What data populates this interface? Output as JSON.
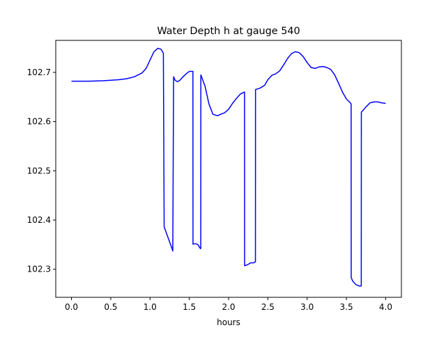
{
  "chart_data": {
    "type": "line",
    "title": "Water Depth h at gauge 540",
    "xlabel": "hours",
    "ylabel": "",
    "xlim": [
      -0.2,
      4.2
    ],
    "ylim": [
      102.243,
      102.765
    ],
    "x_ticks": [
      0.0,
      0.5,
      1.0,
      1.5,
      2.0,
      2.5,
      3.0,
      3.5,
      4.0
    ],
    "x_tick_labels": [
      "0.0",
      "0.5",
      "1.0",
      "1.5",
      "2.0",
      "2.5",
      "3.0",
      "3.5",
      "4.0"
    ],
    "y_ticks": [
      102.3,
      102.4,
      102.5,
      102.6,
      102.7
    ],
    "y_tick_labels": [
      "102.3",
      "102.4",
      "102.5",
      "102.6",
      "102.7"
    ],
    "grid": false,
    "legend": "none",
    "series": [
      {
        "color": "#0000ff",
        "x": [
          0.0,
          0.2,
          0.4,
          0.6,
          0.7,
          0.8,
          0.9,
          0.95,
          1.0,
          1.05,
          1.1,
          1.14,
          1.17,
          1.18,
          1.28,
          1.29,
          1.3,
          1.32,
          1.35,
          1.38,
          1.42,
          1.46,
          1.5,
          1.54,
          1.546,
          1.547,
          1.58,
          1.61,
          1.64,
          1.646,
          1.647,
          1.7,
          1.75,
          1.8,
          1.86,
          1.9,
          1.95,
          2.0,
          2.05,
          2.1,
          2.15,
          2.2,
          2.203,
          2.204,
          2.25,
          2.28,
          2.32,
          2.34,
          2.342,
          2.343,
          2.4,
          2.46,
          2.5,
          2.55,
          2.6,
          2.65,
          2.7,
          2.75,
          2.8,
          2.85,
          2.9,
          2.95,
          3.0,
          3.05,
          3.1,
          3.15,
          3.2,
          3.25,
          3.3,
          3.35,
          3.4,
          3.45,
          3.5,
          3.55,
          3.56,
          3.561,
          3.58,
          3.62,
          3.66,
          3.68,
          3.689,
          3.69,
          3.75,
          3.8,
          3.85,
          3.9,
          3.95,
          4.0
        ],
        "y": [
          102.682,
          102.682,
          102.683,
          102.685,
          102.687,
          102.691,
          102.699,
          102.708,
          102.725,
          102.742,
          102.749,
          102.747,
          102.739,
          102.386,
          102.342,
          102.337,
          102.691,
          102.684,
          102.681,
          102.684,
          102.691,
          102.697,
          102.702,
          102.702,
          102.702,
          102.351,
          102.352,
          102.35,
          102.342,
          102.342,
          102.695,
          102.672,
          102.636,
          102.615,
          102.612,
          102.615,
          102.618,
          102.625,
          102.637,
          102.647,
          102.656,
          102.66,
          102.66,
          102.307,
          102.31,
          102.313,
          102.313,
          102.315,
          102.315,
          102.665,
          102.668,
          102.674,
          102.685,
          102.694,
          102.697,
          102.703,
          102.715,
          102.728,
          102.738,
          102.742,
          102.74,
          102.732,
          102.72,
          102.71,
          102.708,
          102.711,
          102.712,
          102.71,
          102.706,
          102.695,
          102.678,
          102.66,
          102.646,
          102.638,
          102.636,
          102.283,
          102.276,
          102.269,
          102.266,
          102.266,
          102.266,
          102.619,
          102.63,
          102.638,
          102.64,
          102.64,
          102.638,
          102.637
        ]
      }
    ]
  }
}
